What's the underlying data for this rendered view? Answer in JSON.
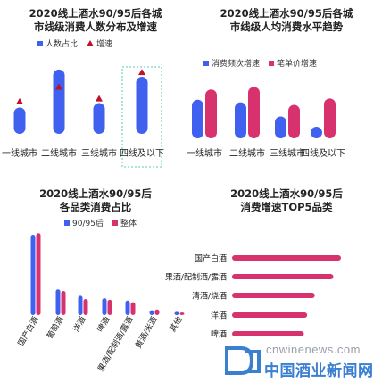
{
  "colors": {
    "blue": "#4060f0",
    "pink": "#d8326e",
    "red_marker": "#c0102a",
    "highlight_box": "#5ac8b8"
  },
  "chart_data": [
    {
      "type": "bar",
      "title_line1": "2020线上酒水90/95后各城",
      "title_line2": "市线级消费人数分布及增速",
      "legend": [
        "人数占比",
        "增速"
      ],
      "categories": [
        "一线城市",
        "二线城市",
        "三线城市",
        "四线及以下"
      ],
      "series": [
        {
          "name": "人数占比",
          "values": [
            0.36,
            0.88,
            0.42,
            0.78
          ]
        },
        {
          "name": "增速",
          "values": [
            0.44,
            0.64,
            0.48,
            0.84
          ]
        }
      ],
      "highlighted_category": "四线及以下",
      "note": "axis values not printed; relative heights estimated"
    },
    {
      "type": "bar",
      "title_line1": "2020线上酒水90/95后各城",
      "title_line2": "市线级人均消费水平趋势",
      "legend": [
        "消费频次增速",
        "笔单价增速"
      ],
      "categories": [
        "一线城市",
        "二线城市",
        "三线城市",
        "四线及以下"
      ],
      "series": [
        {
          "name": "消费频次增速",
          "values": [
            0.6,
            0.56,
            0.34,
            0.18
          ]
        },
        {
          "name": "笔单价增速",
          "values": [
            0.76,
            0.8,
            0.52,
            0.62
          ]
        }
      ]
    },
    {
      "type": "bar",
      "title_line1": "2020线上酒水90/95后",
      "title_line2": "各品类消费占比",
      "legend": [
        "90/95后",
        "整体"
      ],
      "categories": [
        "国产白酒",
        "葡萄酒",
        "洋酒",
        "啤酒",
        "果酒/配制酒/露酒",
        "黄酒/米酒",
        "其他"
      ],
      "series": [
        {
          "name": "90/95后",
          "values": [
            1.0,
            0.32,
            0.24,
            0.21,
            0.18,
            0.06,
            0.04
          ]
        },
        {
          "name": "整体",
          "values": [
            1.02,
            0.3,
            0.2,
            0.19,
            0.16,
            0.07,
            0.03
          ]
        }
      ]
    },
    {
      "type": "bar",
      "orientation": "horizontal",
      "title_line1": "2020线上酒水90/95后",
      "title_line2": "消费增速TOP5品类",
      "categories": [
        "国产白酒",
        "果酒/配制酒/露酒",
        "清酒/烧酒",
        "洋酒",
        "啤酒"
      ],
      "values": [
        1.0,
        0.93,
        0.76,
        0.69,
        0.66
      ]
    }
  ],
  "watermark": {
    "en": "cnwinenews.com",
    "cn": "中国酒业新闻网"
  }
}
